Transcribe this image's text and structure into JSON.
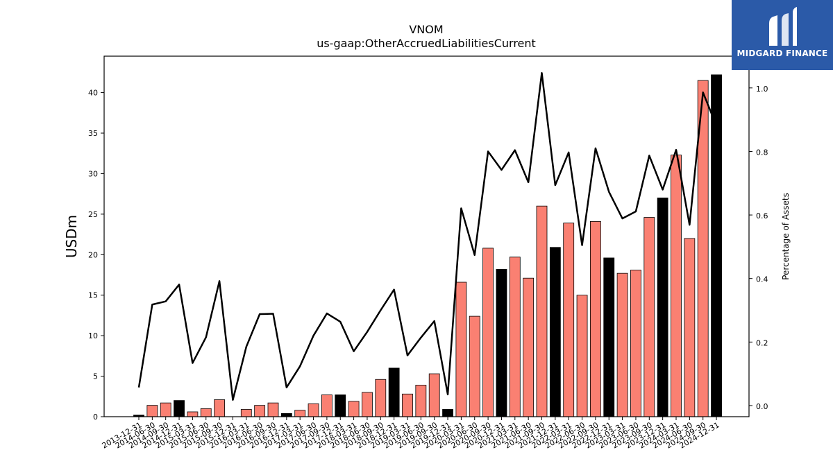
{
  "chart_data": {
    "type": "bar+line",
    "title": "VNOM",
    "subtitle": "us-gaap:OtherAccruedLiabilitiesCurrent",
    "ylabel": "USDm",
    "y2label": "Percentage of Assets",
    "ylim": [
      0,
      44.5
    ],
    "y2lim": [
      -0.035,
      1.1
    ],
    "yticks": [
      0,
      5,
      10,
      15,
      20,
      25,
      30,
      35,
      40
    ],
    "y2ticks": [
      0.0,
      0.2,
      0.4,
      0.6,
      0.8,
      1.0
    ],
    "categories": [
      "2013-12-31",
      "2014-06-30",
      "2014-09-30",
      "2014-12-31",
      "2015-03-31",
      "2015-06-30",
      "2015-09-30",
      "2015-12-31",
      "2016-03-31",
      "2016-06-30",
      "2016-09-30",
      "2016-12-31",
      "2017-03-31",
      "2017-06-30",
      "2017-09-30",
      "2017-12-31",
      "2018-03-31",
      "2018-06-30",
      "2018-09-30",
      "2018-12-31",
      "2019-03-31",
      "2019-06-30",
      "2019-09-30",
      "2019-12-31",
      "2020-03-31",
      "2020-06-30",
      "2020-09-30",
      "2020-12-31",
      "2021-03-31",
      "2021-06-30",
      "2021-09-30",
      "2021-12-31",
      "2022-03-31",
      "2022-06-30",
      "2022-09-30",
      "2022-12-31",
      "2023-03-31",
      "2023-06-30",
      "2023-09-30",
      "2023-12-31",
      "2024-03-31",
      "2024-06-30",
      "2024-09-30",
      "2024-12-31"
    ],
    "series": [
      {
        "kind": "bar",
        "values": [
          0.2,
          1.4,
          1.7,
          2.0,
          0.6,
          1.0,
          2.1,
          0.0,
          0.9,
          1.4,
          1.7,
          0.4,
          0.8,
          1.6,
          2.7,
          2.7,
          1.9,
          3.0,
          4.6,
          6.0,
          2.8,
          3.9,
          5.3,
          0.9,
          16.6,
          12.4,
          20.8,
          18.2,
          19.7,
          17.1,
          26.0,
          20.9,
          23.9,
          15.0,
          24.1,
          19.6,
          17.7,
          18.1,
          24.6,
          27.0,
          32.3,
          22.0,
          41.5,
          42.2
        ],
        "colors": [
          "#000000",
          "#fa8072",
          "#fa8072",
          "#000000",
          "#fa8072",
          "#fa8072",
          "#fa8072",
          "#fa8072",
          "#fa8072",
          "#fa8072",
          "#fa8072",
          "#000000",
          "#fa8072",
          "#fa8072",
          "#fa8072",
          "#000000",
          "#fa8072",
          "#fa8072",
          "#fa8072",
          "#000000",
          "#fa8072",
          "#fa8072",
          "#fa8072",
          "#000000",
          "#fa8072",
          "#fa8072",
          "#fa8072",
          "#000000",
          "#fa8072",
          "#fa8072",
          "#fa8072",
          "#000000",
          "#fa8072",
          "#fa8072",
          "#fa8072",
          "#000000",
          "#fa8072",
          "#fa8072",
          "#fa8072",
          "#000000",
          "#fa8072",
          "#fa8072",
          "#fa8072",
          "#000000"
        ]
      },
      {
        "kind": "line",
        "axis": "y2",
        "color": "#000000",
        "values": [
          0.057,
          0.318,
          0.328,
          0.381,
          0.134,
          0.215,
          0.392,
          0.018,
          0.185,
          0.288,
          0.289,
          0.057,
          0.124,
          0.22,
          0.29,
          0.264,
          0.171,
          0.232,
          0.3,
          0.365,
          0.158,
          0.214,
          0.266,
          0.035,
          0.621,
          0.474,
          0.8,
          0.742,
          0.804,
          0.703,
          1.047,
          0.694,
          0.797,
          0.505,
          0.81,
          0.673,
          0.589,
          0.611,
          0.787,
          0.68,
          0.805,
          0.569,
          0.986,
          0.881
        ]
      }
    ],
    "grid": false,
    "legend": "none"
  },
  "logo": {
    "text": "MIDGARD FINANCE",
    "bg_color": "#2b5aa8"
  }
}
